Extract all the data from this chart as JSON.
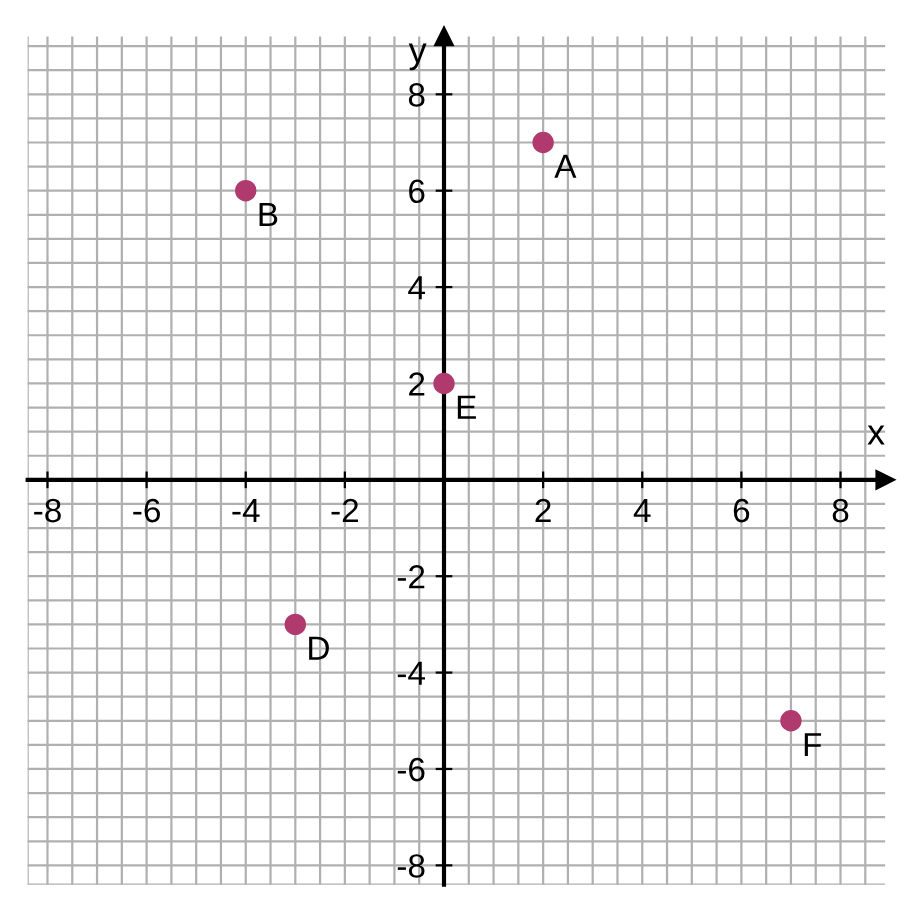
{
  "chart_data": {
    "type": "scatter",
    "xlabel": "x",
    "ylabel": "y",
    "x": [
      2,
      -4,
      0,
      -3,
      7
    ],
    "series": [
      {
        "color": "#b03a6e",
        "values": [
          7,
          6,
          2,
          -3,
          -5
        ]
      }
    ],
    "marker": "circle",
    "grid": true,
    "xlim": [
      -8.4,
      8.9
    ],
    "ylim": [
      -8.4,
      9.2
    ],
    "xticks": [
      -8,
      -6,
      -4,
      -2,
      2,
      4,
      6,
      8
    ],
    "yticks": [
      -8,
      -6,
      -4,
      -2,
      2,
      4,
      6,
      8
    ],
    "annotations": [
      {
        "text": "A",
        "x": 2,
        "y": 7
      },
      {
        "text": "B",
        "x": -4,
        "y": 6
      },
      {
        "text": "E",
        "x": 0,
        "y": 2
      },
      {
        "text": "D",
        "x": -3,
        "y": -3
      },
      {
        "text": "F",
        "x": 7,
        "y": -5
      }
    ]
  }
}
